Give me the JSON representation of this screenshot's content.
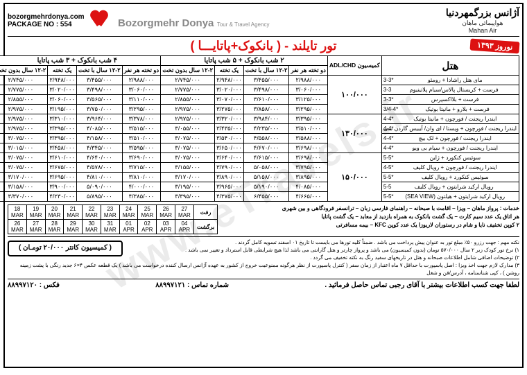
{
  "header": {
    "agency_fa": "آژانس بزرگمهردنیا",
    "mahan": "Mahan Air",
    "mahan_fa": "هواپیمائی ماهان",
    "agency_en": "Bozorgmehr Donya",
    "agency_sub": "Tour & Travel Agency",
    "website": "bozorgmehrdonya.com",
    "package": "PACKAGE NO : 554"
  },
  "title": {
    "tour": "تور تایلند - ( بانکوک+پاتایـــا )",
    "nowruz": "نوروز ۱۳۹۳"
  },
  "pricing": {
    "hotel_col": "هتل",
    "commission_col": "کمیسیون ADL/CHD",
    "packageA": "۲ شب بانکوک + ۵ شب پاتایا",
    "packageB": "۴ شب بانکوک + ۳ شب پاتایا",
    "subcols": [
      "دو تخته هر نفر",
      "۱۲-۲ سال با تخت",
      "یک تخته",
      "۱۲-۲ سال بدون تخت"
    ],
    "groups": [
      {
        "commission": "۱۰۰/۰۰۰",
        "rows": [
          {
            "hotel": "مای هتل راشادا + رومئو",
            "grade": "3-3*",
            "A": [
              "۲/۹۸۸/۰۰۰",
              "۳/۴۵۵/۰۰۰",
              "۲/۹۴۸/۰۰۰",
              "۲/۷۴۵/۰۰۰"
            ],
            "B": [
              "۲/۹۸۸/۰۰۰",
              "۳/۴۵۵/۰۰۰",
              "۲/۹۴۸/۰۰۰",
              "۲/۷۴۵/۰۰۰"
            ]
          },
          {
            "hotel": "فرست + کریستال پالاس/سیام پلاتینیوم",
            "grade": "3-3",
            "A": [
              "۳/۰۶۰/۰۰۰",
              "۳/۴۹۸/۰۰۰",
              "۳/۰۲۰/۰۰۰",
              "۲/۷۷۵/۰۰۰"
            ],
            "B": [
              "۳/۰۶۰/۰۰۰",
              "۳/۴۹۸/۰۰۰",
              "۳/۰۲۰/۰۰۰",
              "۲/۷۷۵/۰۰۰"
            ]
          },
          {
            "hotel": "فرست + بلااکسپرس",
            "grade": "3-3*",
            "A": [
              "۳/۱۲۵/۰۰۰",
              "۳/۶۱۰/۰۰۰",
              "۳/۰۷۰/۰۰۰",
              "۲/۸۵۵/۰۰۰"
            ],
            "B": [
              "۳/۱۱۰/۰۰۰",
              "۳/۵۶۵/۰۰۰",
              "۳/۰۶۰/۰۰۰",
              "۲/۸۵۵/۰۰۰"
            ]
          },
          {
            "hotel": "فرست + بلارو + مانیتا بوتیک",
            "grade": "3/4-4*",
            "A": [
              "۳/۲۹۵/۰۰۰",
              "۳/۸۵۸/۰۰۰",
              "۳/۲۷۵/۰۰۰",
              "۲/۹۷۵/۰۰۰"
            ],
            "B": [
              "۳/۲۹۵/۰۰۰",
              "۳/۷۵۰/۰۰۰",
              "۳/۱۹۵/۰۰۰",
              "۲/۹۷۵/۰۰۰"
            ]
          }
        ]
      },
      {
        "commission": "۱۳۰/۰۰۰",
        "rows": [
          {
            "hotel": "ایندرا ریجنت / فورچون + مانیتا بوتیک",
            "grade": "4-4*",
            "A": [
              "۳/۳۹۵/۰۰۰",
              "۳/۹۸۴/۰۰۰",
              "۳/۳۲۰/۰۰۰",
              "۲/۹۷۵/۰۰۰"
            ],
            "B": [
              "۳/۳۷۸/۰۰۰",
              "۳/۹۶۴/۰۰۰",
              "۳/۳۱۰/۰۰۰",
              "۲/۹۷۵/۰۰۰"
            ]
          },
          {
            "hotel": "ایندرا ریجنت / فورچون + ویستا / ای وان/ آیبیس گاردن سی",
            "grade": "4-4*",
            "A": [
              "۳/۵۱۰/۰۰۰",
              "۴/۲۳۵/۰۰۰",
              "۳/۴۳۵/۰۰۰",
              "۳/۰۵۵/۰۰۰"
            ],
            "B": [
              "۳/۵۱۵/۰۰۰",
              "۴/۰۸۵/۰۰۰",
              "۳/۳۹۵/۰۰۰",
              "۲/۹۷۵/۰۰۰"
            ]
          },
          {
            "hotel": "ایندرا ریجنت / فورچون + لک بیچ",
            "grade": "4-4*",
            "A": [
              "۳/۵۸۸/۰۰۰",
              "۴/۵۵۸/۰۰۰",
              "۳/۵۴۰/۰۰۰",
              "۳/۰۷۵/۰۰۰"
            ],
            "B": [
              "۳/۵۱۰/۰۰۰",
              "۴/۱۵۸/۰۰۰",
              "۳/۳۹۵/۰۰۰",
              "۳/۰۷۵/۰۰۰"
            ]
          },
          {
            "hotel": "ایندرا ریجنت / فورچون + سیام بی ویو",
            "grade": "4-4*",
            "A": [
              "۳/۶۹۸/۰۰۰",
              "۴/۶۷۰/۰۰۰",
              "۳/۶۵۰/۰۰۰",
              "۳/۰۷۵/۰۰۰"
            ],
            "B": [
              "۳/۵۹۵/۰۰۰",
              "۴/۳۴۵/۰۰۰",
              "۳/۴۵۸/۰۰۰",
              "۳/۰۱۵/۰۰۰"
            ]
          }
        ]
      },
      {
        "commission": "۱۵۰/۰۰۰",
        "rows": [
          {
            "hotel": "سوئیس کنکورد + ژاین",
            "grade": "5-5*",
            "A": [
              "۳/۶۹۸/۰۰۰",
              "۴/۶۱۵/۰۰۰",
              "۳/۶۴۰/۰۰۰",
              "۳/۰۷۵/۰۰۰"
            ],
            "B": [
              "۳/۶۹۰/۰۰۰",
              "۴/۶۴۰/۰۰۰",
              "۳/۶۱۰/۰۰۰",
              "۳/۰۷۵/۰۰۰"
            ]
          },
          {
            "hotel": "ایندرا ریجنت / فورچون + رویال کلیف",
            "grade": "4-5*",
            "A": [
              "۳/۷۹۵/۰۰۰",
              "۵/۰۵۸/۰۰۰",
              "۳/۷۹۰/۰۰۰",
              "۳/۱۵۵/۰۰۰"
            ],
            "B": [
              "۳/۷۱۵/۰۰۰",
              "۴/۵۷۸/۰۰۰",
              "۳/۶۷۵/۰۰۰",
              "۳/۰۷۵/۰۰۰"
            ]
          },
          {
            "hotel": "سوئیس کنکورد + رویال کلیف",
            "grade": "5-5*",
            "A": [
              "۳/۸۹۵/۰۰۰",
              "۵/۱۵۸/۰۰۰",
              "۳/۸۹۰/۰۰۰",
              "۳/۱۷۰/۰۰۰"
            ],
            "B": [
              "۳/۸۱۰/۰۰۰",
              "۴/۸۱۰/۰۰۰",
              "۳/۶۹۵/۰۰۰",
              "۳/۱۷۰/۰۰۰"
            ]
          },
          {
            "hotel": "رویال ارکید شرایتون + رویال کلیف",
            "grade": "5-5",
            "A": [
              "۴/۰۸۵/۰۰۰",
              "۵/۱۹۰/۰۰۰",
              "۳/۹۶۵/۰۰۰",
              "۳/۱۹۵/۰۰۰"
            ],
            "B": [
              "۴/۰۰۰/۰۰۰",
              "۵/۰۹۰/۰۰۰",
              "۳/۹۰۰/۰۰۰",
              "۳/۱۵۸/۰۰۰"
            ]
          },
          {
            "hotel": "رویال ارکید شرایتون + هیلتون (SEA VIEW)",
            "grade": "5-5*",
            "A": [
              "۴/۶۶۵/۰۰۰",
              "۶/۴۵۵/۰۰۰",
              "۴/۳۷۵/۰۰۰",
              "۳/۳۹۵/۰۰۰"
            ],
            "B": [
              "۴/۳۸۵/۰۰۰",
              "۵/۸۹۵/۰۰۰",
              "۴/۲۳۰/۰۰۰",
              "۳/۳۷۰/۰۰۰"
            ]
          }
        ]
      }
    ]
  },
  "dates": {
    "go_label": "رفت",
    "back_label": "برگشت",
    "go": [
      {
        "d": "18",
        "m": "MAR"
      },
      {
        "d": "19",
        "m": "MAR"
      },
      {
        "d": "20",
        "m": "MAR"
      },
      {
        "d": "21",
        "m": "MAR"
      },
      {
        "d": "22",
        "m": "MAR"
      },
      {
        "d": "23",
        "m": "MAR"
      },
      {
        "d": "24",
        "m": "MAR"
      },
      {
        "d": "25",
        "m": "MAR"
      },
      {
        "d": "26",
        "m": "MAR"
      },
      {
        "d": "27",
        "m": "MAR"
      }
    ],
    "back": [
      {
        "d": "26",
        "m": "MAR"
      },
      {
        "d": "27",
        "m": "MAR"
      },
      {
        "d": "28",
        "m": "MAR"
      },
      {
        "d": "29",
        "m": "MAR"
      },
      {
        "d": "30",
        "m": "MAR"
      },
      {
        "d": "31",
        "m": "MAR"
      },
      {
        "d": "01",
        "m": "APR"
      },
      {
        "d": "02",
        "m": "APR"
      },
      {
        "d": "03",
        "m": "APR"
      },
      {
        "d": "04",
        "m": "APR"
      }
    ]
  },
  "services": {
    "line1": "خدمات : پرواز ماهان – ویزا – اقامت با صبحانه – راهنمای فارسی زبان – ترانسفر فرودگاهی و بین شهری",
    "line2": "هر اتاق یک عدد سیم کارت – یک گشت بانکوک به همراه بازدید از معابد – یک گشت پاتایا",
    "line3": "۲ کوپن تخفیف نایا و شام در رستوران لاریوزا یک عدد کوپن KFC – بیمه مسافرتی"
  },
  "notes": {
    "n1": "نکته مهم : جهت رزرو ۵۰٪ مبلغ تور به عنوان پیش پرداخت می باشد . ضمناً کلیه تورها می بایست تا تاریخ ۰۱ اسفند تسویه کامل گردند .",
    "n2": "۱) نرخ تور کودک زیر ۲ سال ۵۷۰/۰۰۰ تومان (بدون کمیسیون) می باشد و پرواز چارتر و هتل گارانتی می باشد لذا هیچ شرایطی قابل استرداد و تغییر نمی باشد .",
    "n3": "۲) توضیحات اضافی شامل اطلاعات صبحانه و هتل در تاریخهای سفید رنگ به نکته تخفیف می گردد .",
    "n4": "۳) مدارک لازم جهت اخذ ویزا : اصل پاسپورت با حداقل ۷ ماه اعتبار از زمان سفر ( کنترل پاسپورت از نظر هرگونه ممنوعیت خروج از کشور به عهده آژانس ارسال کننده درخواست می باشد ) یک قطعه عکس ۴×۶ جدید رنگی با پشت زمینه روشن ) ، کپی شناسنامه ، آدرس/فن و شغل",
    "counter": "( کمیسیون کانتر ۲۰/۰۰۰ تومـان )"
  },
  "footer": {
    "contact": "لطفا جهت کسب اطلاعات بیشتر با آقای رجبی تماس حاصل فرمائید .",
    "phone_label": "شماره تماس :",
    "phone": "۸۸۹۹۷۱۲۱",
    "fax_label": "فکس :",
    "fax": "۸۸۹۹۷۱۲۰"
  },
  "watermark": "www.eTravels.ir"
}
